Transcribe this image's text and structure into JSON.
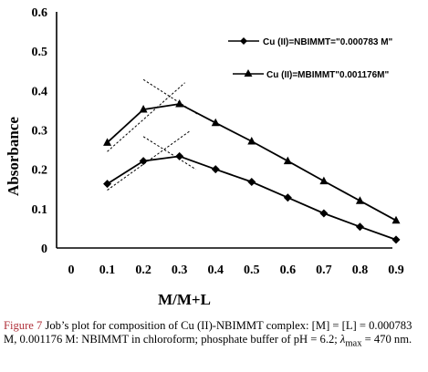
{
  "chart_data": {
    "type": "line",
    "title": "",
    "xlabel": "M/M+L",
    "ylabel": "Absorbance",
    "x_ticks": [
      "0",
      "0.1",
      "0.2",
      "0.3",
      "0.4",
      "0.5",
      "0.6",
      "0.7",
      "0.8",
      "0.9"
    ],
    "y_ticks": [
      "0",
      "0.1",
      "0.2",
      "0.3",
      "0.4",
      "0.5",
      "0.6"
    ],
    "xlim": [
      0,
      0.9
    ],
    "ylim": [
      0,
      0.6
    ],
    "grid": false,
    "legend_position": "top-right",
    "x": [
      0.1,
      0.2,
      0.3,
      0.4,
      0.5,
      0.6,
      0.7,
      0.8,
      0.9
    ],
    "series": [
      {
        "name": "Cu (II)=NBIMMT=\"0.000783 M\"",
        "marker": "diamond",
        "color": "#000000",
        "values": [
          0.163,
          0.221,
          0.233,
          0.2,
          0.168,
          0.128,
          0.088,
          0.054,
          0.021
        ]
      },
      {
        "name": "Cu (II)=MBIMMT\"0.001176M\"",
        "marker": "triangle",
        "color": "#000000",
        "values": [
          0.268,
          0.352,
          0.366,
          0.318,
          0.271,
          0.221,
          0.17,
          0.12,
          0.07
        ]
      }
    ],
    "tangent_lines": [
      {
        "from": [
          0.1,
          0.147
        ],
        "to": [
          0.33,
          0.298
        ]
      },
      {
        "from": [
          0.2,
          0.283
        ],
        "to": [
          0.345,
          0.2
        ]
      },
      {
        "from": [
          0.1,
          0.245
        ],
        "to": [
          0.315,
          0.42
        ]
      },
      {
        "from": [
          0.2,
          0.428
        ],
        "to": [
          0.35,
          0.34
        ]
      }
    ]
  },
  "caption": {
    "figure_label": "Figure 7",
    "text_1": "  Job’s plot for composition of Cu (II)-NBIMMT complex: [M] = [L] = 0.000783 M, 0.001176 M: NBIMMT in chloroform; phosphate buffer of pH = 6.2; ",
    "lambda": "λ",
    "max_sub": "max",
    "text_2": " = 470 nm."
  }
}
